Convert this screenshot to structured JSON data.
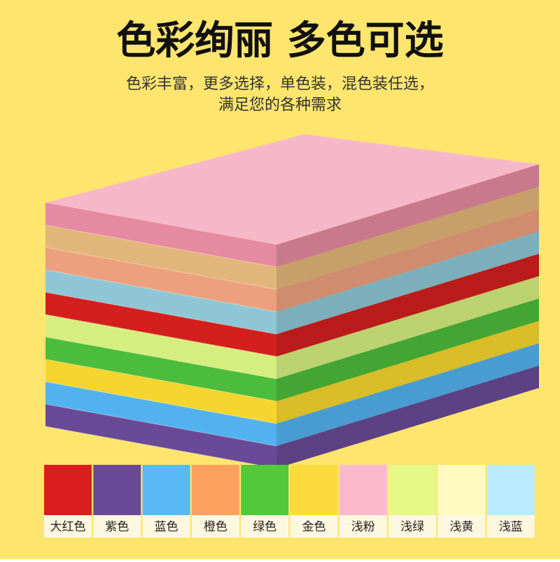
{
  "header": {
    "title": "色彩绚丽 多色可选",
    "subtitle_lines": [
      "色彩丰富，更多选择，单色装，混色装任选，",
      "满足您的各种需求"
    ]
  },
  "swatches": [
    {
      "label": "大红色",
      "color": "#d81e1e"
    },
    {
      "label": "紫色",
      "color": "#6a4a96"
    },
    {
      "label": "蓝色",
      "color": "#5ab8f5"
    },
    {
      "label": "橙色",
      "color": "#fca060"
    },
    {
      "label": "绿色",
      "color": "#52c83a"
    },
    {
      "label": "金色",
      "color": "#fedb3c"
    },
    {
      "label": "浅粉",
      "color": "#fbb9cc"
    },
    {
      "label": "浅绿",
      "color": "#e6f885"
    },
    {
      "label": "浅黄",
      "color": "#fffbc0"
    },
    {
      "label": "浅蓝",
      "color": "#b8ebff"
    }
  ]
}
